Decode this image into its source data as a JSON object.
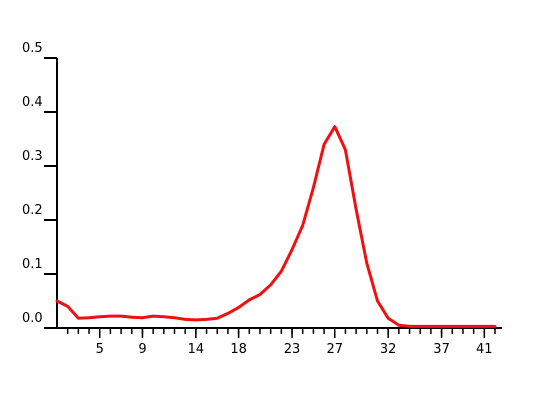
{
  "chart_data": {
    "type": "line",
    "title": "",
    "xlabel": "",
    "ylabel": "",
    "xlim": [
      1,
      42
    ],
    "ylim": [
      0,
      0.5
    ],
    "grid": false,
    "legend": "none",
    "line_color": "#ee1111",
    "axis_color": "#000000",
    "y_ticks": [
      {
        "value": 0.0,
        "label": "0.0"
      },
      {
        "value": 0.1,
        "label": "0.1"
      },
      {
        "value": 0.2,
        "label": "0.2"
      },
      {
        "value": 0.3,
        "label": "0.3"
      },
      {
        "value": 0.4,
        "label": "0.4"
      },
      {
        "value": 0.5,
        "label": "0.5"
      }
    ],
    "x_ticks": [
      {
        "value": 5,
        "label": "5"
      },
      {
        "value": 9,
        "label": "9"
      },
      {
        "value": 14,
        "label": "14"
      },
      {
        "value": 18,
        "label": "18"
      },
      {
        "value": 23,
        "label": "23"
      },
      {
        "value": 27,
        "label": "27"
      },
      {
        "value": 32,
        "label": "32"
      },
      {
        "value": 37,
        "label": "37"
      },
      {
        "value": 41,
        "label": "41"
      }
    ],
    "series": [
      {
        "x": [
          1,
          2,
          3,
          4,
          5,
          6,
          7,
          8,
          9,
          10,
          11,
          12,
          13,
          14,
          15,
          16,
          17,
          18,
          19,
          20,
          21,
          22,
          23,
          24,
          25,
          26,
          27,
          28,
          29,
          30,
          31,
          32,
          33,
          34,
          35,
          36,
          37,
          38,
          39,
          40,
          41,
          42
        ],
        "values": [
          0.05,
          0.04,
          0.018,
          0.019,
          0.021,
          0.022,
          0.022,
          0.02,
          0.019,
          0.022,
          0.021,
          0.019,
          0.016,
          0.015,
          0.016,
          0.018,
          0.027,
          0.038,
          0.052,
          0.062,
          0.08,
          0.105,
          0.145,
          0.19,
          0.26,
          0.34,
          0.373,
          0.33,
          0.22,
          0.12,
          0.05,
          0.018,
          0.005,
          0.003,
          0.003,
          0.003,
          0.003,
          0.003,
          0.003,
          0.003,
          0.003,
          0.003
        ]
      }
    ]
  }
}
